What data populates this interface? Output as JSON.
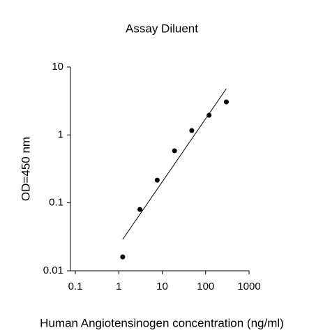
{
  "chart_data": {
    "type": "scatter",
    "title": "Assay Diluent",
    "x_label": "Human  Angiotensinogen concentration (ng/ml)",
    "y_label": "OD=450 nm",
    "x_scale": "log",
    "y_scale": "log",
    "xlim": [
      0.1,
      1000
    ],
    "ylim": [
      0.01,
      10
    ],
    "xticks": [
      0.1,
      1,
      10,
      100,
      1000
    ],
    "yticks": [
      0.01,
      0.1,
      1,
      10
    ],
    "series": [
      {
        "name": "Assay Diluent",
        "color": "#000000",
        "x": [
          1.23,
          3.07,
          7.68,
          19.2,
          48,
          120,
          300
        ],
        "values": [
          0.016,
          0.08,
          0.216,
          0.585,
          1.16,
          1.95,
          3.06
        ]
      }
    ],
    "trendline": {
      "color": "#000000",
      "x": [
        1.23,
        300
      ],
      "y": [
        0.029,
        4.8
      ]
    }
  }
}
